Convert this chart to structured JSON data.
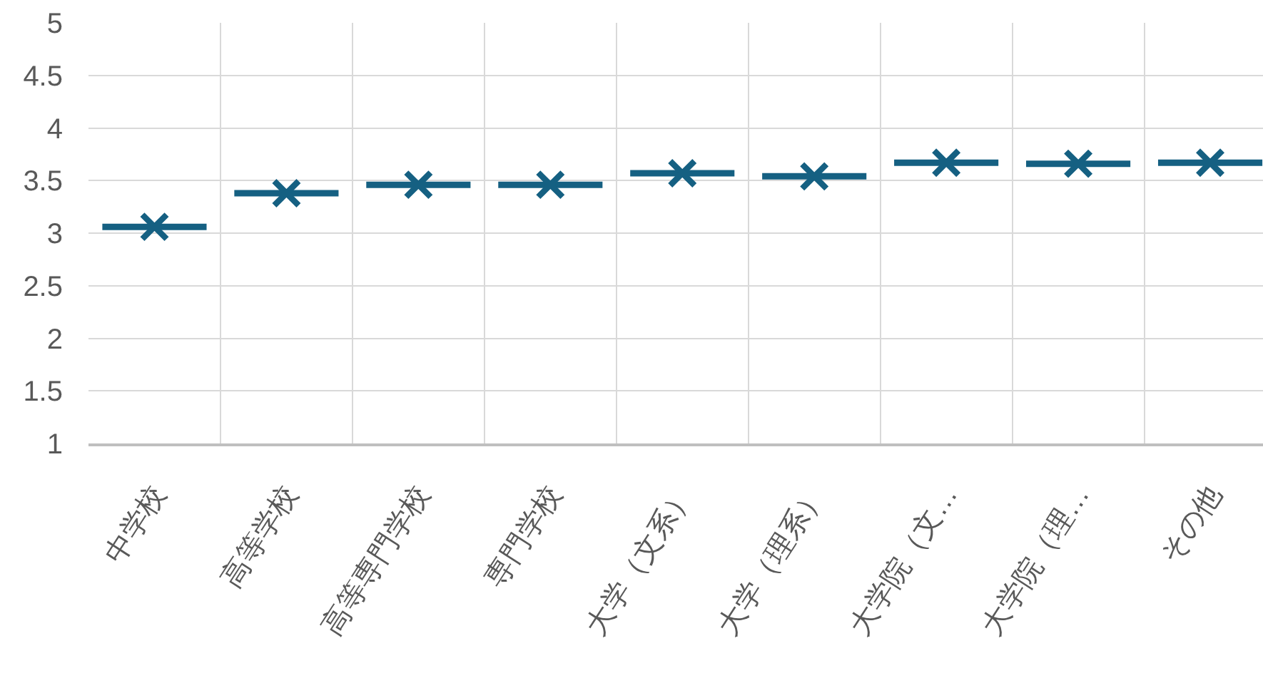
{
  "chart_data": {
    "type": "box",
    "categories": [
      "中学校",
      "高等学校",
      "高等専門学校",
      "専門学校",
      "大学（文系）",
      "大学（理系）",
      "大学院（文…",
      "大学院（理…",
      "その他"
    ],
    "series": [
      {
        "color": "#156082",
        "boxes": [
          {
            "low": 3.06,
            "q1": 3.06,
            "median": 3.06,
            "q3": 3.06,
            "high": 3.06,
            "mean": 3.06
          },
          {
            "low": 3.38,
            "q1": 3.38,
            "median": 3.38,
            "q3": 3.38,
            "high": 3.38,
            "mean": 3.38
          },
          {
            "low": 3.46,
            "q1": 3.46,
            "median": 3.46,
            "q3": 3.46,
            "high": 3.46,
            "mean": 3.46
          },
          {
            "low": 3.46,
            "q1": 3.46,
            "median": 3.46,
            "q3": 3.46,
            "high": 3.46,
            "mean": 3.46
          },
          {
            "low": 3.57,
            "q1": 3.57,
            "median": 3.57,
            "q3": 3.57,
            "high": 3.57,
            "mean": 3.57
          },
          {
            "low": 3.54,
            "q1": 3.54,
            "median": 3.54,
            "q3": 3.54,
            "high": 3.54,
            "mean": 3.54
          },
          {
            "low": 3.67,
            "q1": 3.67,
            "median": 3.67,
            "q3": 3.67,
            "high": 3.67,
            "mean": 3.67
          },
          {
            "low": 3.66,
            "q1": 3.66,
            "median": 3.66,
            "q3": 3.66,
            "high": 3.66,
            "mean": 3.66
          },
          {
            "low": 3.67,
            "q1": 3.67,
            "median": 3.67,
            "q3": 3.67,
            "high": 3.67,
            "mean": 3.67
          }
        ]
      }
    ],
    "ylim": [
      1,
      5
    ],
    "yticks": [
      1,
      1.5,
      2,
      2.5,
      3,
      3.5,
      4,
      4.5,
      5
    ],
    "grid": true
  }
}
